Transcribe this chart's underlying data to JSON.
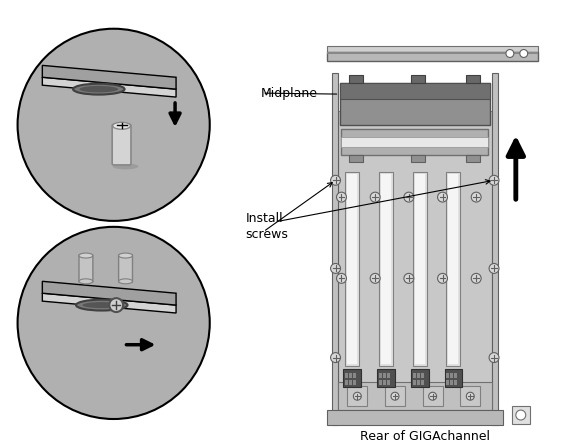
{
  "bg_color": "#ffffff",
  "label_midplane": "Midplane",
  "label_install_screws": "Install\nscrews",
  "label_rear": "Rear of GIGAchannel",
  "plate_top": "#d4d4d4",
  "plate_side": "#a0a0a0",
  "plate_front": "#b8b8b8",
  "circle_fill": "#b0b0b0",
  "board_color": "#c8c8c8",
  "slot_white": "#f0f0f0",
  "dark_gray": "#606060",
  "med_gray": "#909090",
  "light_gray": "#d8d8d8",
  "black": "#000000",
  "connector_dark": "#888888",
  "connector_light": "#e0e0e0"
}
